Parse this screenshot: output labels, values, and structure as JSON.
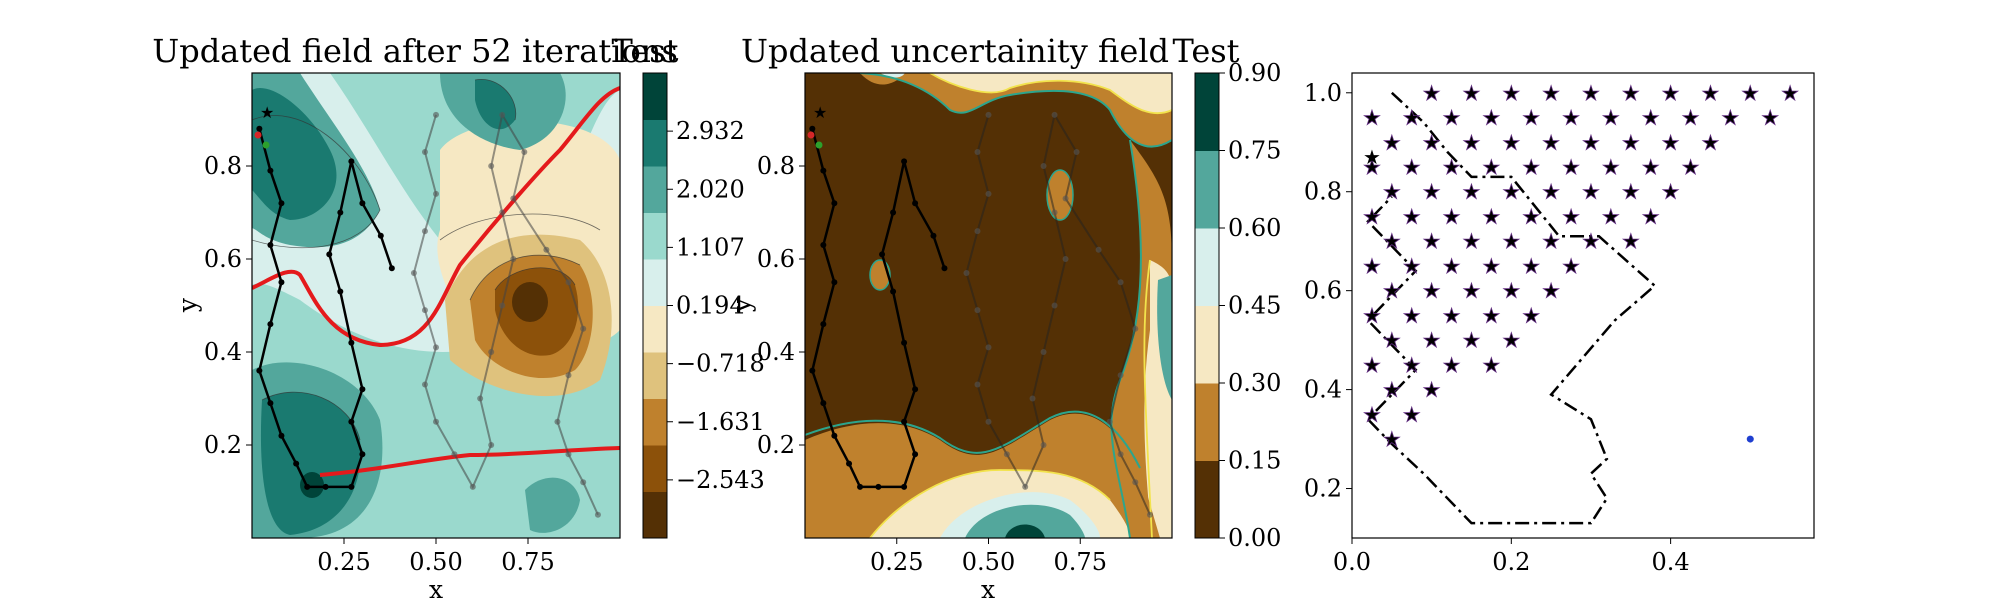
{
  "chart_data": [
    {
      "panel": "left",
      "type": "contour",
      "title": "Updated field after 52 iterations",
      "colorbar_label": "Test",
      "xlabel": "x",
      "ylabel": "y",
      "xlim": [
        0.0,
        1.0
      ],
      "ylim": [
        0.0,
        1.0
      ],
      "xticks": [
        "0.25",
        "0.50",
        "0.75"
      ],
      "yticks": [
        "0.2",
        "0.4",
        "0.6",
        "0.8"
      ],
      "colorbar_ticks": [
        "−2.543",
        "−1.631",
        "−0.718",
        "0.194",
        "1.107",
        "2.020",
        "2.932"
      ],
      "colorbar_colors": [
        "#543005",
        "#8c510a",
        "#bf812d",
        "#dfc27d",
        "#f6e8c3",
        "#d8efec",
        "#9ad9cd",
        "#53a79c",
        "#1a7a70",
        "#004439"
      ],
      "path_black": [
        [
          0.02,
          0.88
        ],
        [
          0.05,
          0.79
        ],
        [
          0.08,
          0.72
        ],
        [
          0.05,
          0.63
        ],
        [
          0.08,
          0.55
        ],
        [
          0.05,
          0.46
        ],
        [
          0.02,
          0.36
        ],
        [
          0.05,
          0.29
        ],
        [
          0.08,
          0.22
        ],
        [
          0.12,
          0.16
        ],
        [
          0.15,
          0.11
        ],
        [
          0.2,
          0.11
        ],
        [
          0.27,
          0.11
        ],
        [
          0.3,
          0.18
        ],
        [
          0.27,
          0.25
        ],
        [
          0.3,
          0.32
        ],
        [
          0.27,
          0.42
        ],
        [
          0.24,
          0.53
        ],
        [
          0.21,
          0.61
        ],
        [
          0.24,
          0.7
        ],
        [
          0.27,
          0.81
        ],
        [
          0.3,
          0.72
        ],
        [
          0.35,
          0.65
        ],
        [
          0.38,
          0.58
        ]
      ],
      "path_grey": [
        [
          0.5,
          0.91
        ],
        [
          0.47,
          0.83
        ],
        [
          0.5,
          0.74
        ],
        [
          0.47,
          0.66
        ],
        [
          0.44,
          0.57
        ],
        [
          0.47,
          0.49
        ],
        [
          0.5,
          0.41
        ],
        [
          0.47,
          0.33
        ],
        [
          0.5,
          0.25
        ],
        [
          0.55,
          0.18
        ],
        [
          0.6,
          0.11
        ],
        [
          0.65,
          0.2
        ],
        [
          0.62,
          0.3
        ],
        [
          0.65,
          0.4
        ],
        [
          0.68,
          0.5
        ],
        [
          0.71,
          0.6
        ],
        [
          0.68,
          0.7
        ],
        [
          0.65,
          0.8
        ],
        [
          0.68,
          0.91
        ],
        [
          0.74,
          0.83
        ],
        [
          0.71,
          0.73
        ],
        [
          0.8,
          0.62
        ],
        [
          0.86,
          0.55
        ],
        [
          0.9,
          0.45
        ],
        [
          0.86,
          0.35
        ],
        [
          0.83,
          0.25
        ],
        [
          0.86,
          0.18
        ],
        [
          0.9,
          0.12
        ],
        [
          0.94,
          0.05
        ]
      ]
    },
    {
      "panel": "middle",
      "type": "contour",
      "title": "Updated uncertainity field",
      "colorbar_label": "Test",
      "xlabel": "x",
      "ylabel": "y",
      "xlim": [
        0.0,
        1.0
      ],
      "ylim": [
        0.0,
        1.0
      ],
      "xticks": [
        "0.25",
        "0.50",
        "0.75"
      ],
      "yticks": [
        "0.2",
        "0.4",
        "0.6",
        "0.8"
      ],
      "colorbar_ticks": [
        "0.00",
        "0.15",
        "0.30",
        "0.45",
        "0.60",
        "0.75",
        "0.90"
      ],
      "colorbar_colors": [
        "#543005",
        "#bf812d",
        "#f6e8c3",
        "#d8efec",
        "#53a79c",
        "#004439"
      ],
      "contour_line_colors": [
        "#2ca58d",
        "#f2e34c"
      ]
    },
    {
      "panel": "right",
      "type": "scatter",
      "xlim": [
        0.0,
        0.58
      ],
      "ylim": [
        0.1,
        1.04
      ],
      "xticks": [
        "0.0",
        "0.2",
        "0.4"
      ],
      "yticks": [
        "0.2",
        "0.4",
        "0.6",
        "0.8",
        "1.0"
      ],
      "star_color": "#9b59b6",
      "boundary": [
        [
          0.05,
          1.0
        ],
        [
          0.09,
          0.94
        ],
        [
          0.12,
          0.88
        ],
        [
          0.15,
          0.83
        ],
        [
          0.2,
          0.83
        ],
        [
          0.23,
          0.77
        ],
        [
          0.26,
          0.71
        ],
        [
          0.31,
          0.71
        ],
        [
          0.38,
          0.61
        ],
        [
          0.33,
          0.54
        ],
        [
          0.25,
          0.39
        ],
        [
          0.3,
          0.34
        ],
        [
          0.32,
          0.26
        ],
        [
          0.3,
          0.23
        ],
        [
          0.32,
          0.18
        ],
        [
          0.3,
          0.13
        ],
        [
          0.23,
          0.13
        ],
        [
          0.15,
          0.13
        ],
        [
          0.09,
          0.23
        ],
        [
          0.05,
          0.29
        ],
        [
          0.02,
          0.34
        ],
        [
          0.05,
          0.39
        ],
        [
          0.08,
          0.44
        ],
        [
          0.05,
          0.49
        ],
        [
          0.02,
          0.54
        ],
        [
          0.05,
          0.59
        ],
        [
          0.08,
          0.64
        ],
        [
          0.05,
          0.69
        ],
        [
          0.02,
          0.74
        ],
        [
          0.05,
          0.79
        ]
      ],
      "red_star": [
        0.025,
        0.87
      ],
      "blue_point": [
        0.5,
        0.3
      ]
    }
  ]
}
